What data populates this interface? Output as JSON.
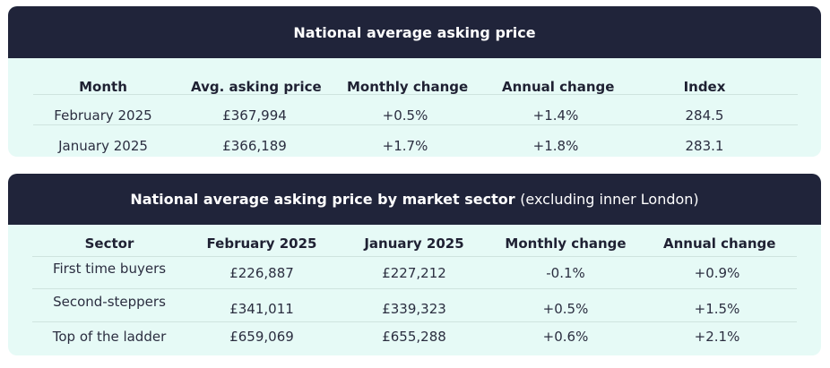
{
  "national": {
    "title": "National average asking price",
    "columns": [
      "Month",
      "Avg. asking price",
      "Monthly change",
      "Annual change",
      "Index"
    ],
    "rows": [
      [
        "February 2025",
        "£367,994",
        "+0.5%",
        "+1.4%",
        "284.5"
      ],
      [
        "January 2025",
        "£366,189",
        "+1.7%",
        "+1.8%",
        "283.1"
      ]
    ]
  },
  "sector": {
    "title": "National average asking price by market sector",
    "title_suffix": "(excluding inner London)",
    "columns": [
      "Sector",
      "February 2025",
      "January 2025",
      "Monthly change",
      "Annual change"
    ],
    "rows": [
      [
        "First time buyers",
        "£226,887",
        "£227,212",
        "-0.1%",
        "+0.9%"
      ],
      [
        "Second-steppers",
        "£341,011",
        "£339,323",
        "+0.5%",
        "+1.5%"
      ],
      [
        "Top of the ladder",
        "£659,069",
        "£655,288",
        "+0.6%",
        "+2.1%"
      ]
    ]
  }
}
